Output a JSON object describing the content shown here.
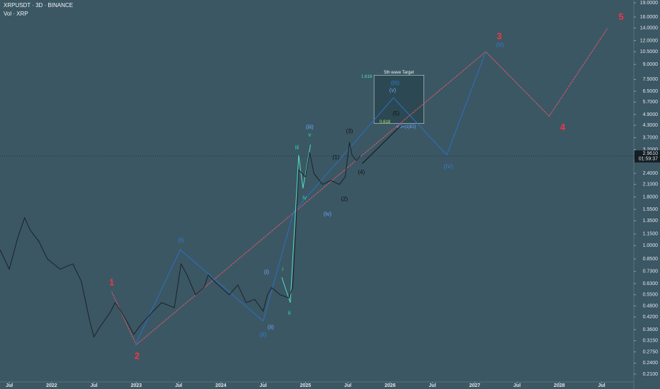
{
  "chart_data": {
    "type": "line",
    "log_scale": true,
    "title": "XRPUSDT · 3D · BINANCE",
    "subtitle": "Vol · XRP",
    "xlim": [
      2021.39,
      2028.88
    ],
    "ylim": [
      0.191,
      19.67
    ],
    "xticks": [
      {
        "value": 2021.5,
        "label": "Jul"
      },
      2022,
      {
        "value": 2022.5,
        "label": "Jul"
      },
      2023,
      {
        "value": 2023.5,
        "label": "Jul"
      },
      2024,
      {
        "value": 2024.5,
        "label": "Jul"
      },
      2025,
      {
        "value": 2025.5,
        "label": "Jul"
      },
      2026,
      {
        "value": 2026.5,
        "label": "Jul"
      },
      2027,
      {
        "value": 2027.5,
        "label": "Jul"
      },
      2028,
      {
        "value": 2028.5,
        "label": "Jul"
      }
    ],
    "yticks": [
      {
        "value": 19,
        "label": "19.0000"
      },
      {
        "value": 16,
        "label": "16.0000"
      },
      {
        "value": 14,
        "label": "14.0000"
      },
      {
        "value": 12,
        "label": "12.0000"
      },
      {
        "value": 10.5,
        "label": "10.5000"
      },
      {
        "value": 9,
        "label": "9.0000"
      },
      {
        "value": 7.5,
        "label": "7.5000"
      },
      {
        "value": 6.5,
        "label": "6.5000"
      },
      {
        "value": 5.7,
        "label": "5.7000"
      },
      {
        "value": 4.9,
        "label": "4.9000"
      },
      {
        "value": 4.3,
        "label": "4.3000"
      },
      {
        "value": 3.7,
        "label": "3.7000"
      },
      {
        "value": 3.2,
        "label": "3.2000"
      },
      {
        "value": 2.8,
        "label": "2.8000"
      },
      {
        "value": 2.4,
        "label": "2.4000"
      },
      {
        "value": 2.1,
        "label": "2.1000"
      },
      {
        "value": 1.8,
        "label": "1.8000"
      },
      {
        "value": 1.55,
        "label": "1.5500"
      },
      {
        "value": 1.35,
        "label": "1.3500"
      },
      {
        "value": 1.15,
        "label": "1.1500"
      },
      {
        "value": 1,
        "label": "1.0000"
      },
      {
        "value": 0.85,
        "label": "0.8500"
      },
      {
        "value": 0.73,
        "label": "0.7300"
      },
      {
        "value": 0.63,
        "label": "0.6300"
      },
      {
        "value": 0.55,
        "label": "0.5500"
      },
      {
        "value": 0.48,
        "label": "0.4800"
      },
      {
        "value": 0.42,
        "label": "0.4200"
      },
      {
        "value": 0.36,
        "label": "0.3600"
      },
      {
        "value": 0.315,
        "label": "0.3150"
      },
      {
        "value": 0.275,
        "label": "0.2750"
      },
      {
        "value": 0.24,
        "label": "0.2400"
      },
      {
        "value": 0.21,
        "label": "0.2100"
      }
    ],
    "last_price": {
      "value": 2.961,
      "label": "2.9610"
    },
    "countdown": "01:59:37",
    "price": {
      "color": "#1c2226",
      "x": [
        2021.39,
        2021.5,
        2021.6,
        2021.68,
        2021.75,
        2021.85,
        2021.95,
        2022.1,
        2022.25,
        2022.35,
        2022.45,
        2022.5,
        2022.55,
        2022.7,
        2022.75,
        2022.82,
        2022.9,
        2022.97,
        2023.05,
        2023.2,
        2023.3,
        2023.45,
        2023.53,
        2023.6,
        2023.7,
        2023.8,
        2023.85,
        2023.95,
        2024.1,
        2024.2,
        2024.3,
        2024.4,
        2024.5,
        2024.55,
        2024.6,
        2024.7,
        2024.8,
        2024.85,
        2024.88,
        2024.92,
        2025.0,
        2025.05,
        2025.1,
        2025.2,
        2025.3,
        2025.4,
        2025.47,
        2025.52,
        2025.55,
        2025.6,
        2025.65
      ],
      "values": [
        0.95,
        0.75,
        1.1,
        1.4,
        1.2,
        1.05,
        0.85,
        0.75,
        0.8,
        0.65,
        0.4,
        0.33,
        0.36,
        0.45,
        0.5,
        0.45,
        0.39,
        0.34,
        0.38,
        0.45,
        0.5,
        0.47,
        0.8,
        0.7,
        0.55,
        0.6,
        0.7,
        0.63,
        0.55,
        0.62,
        0.5,
        0.52,
        0.45,
        0.55,
        0.6,
        0.55,
        0.53,
        0.6,
        1.1,
        2.5,
        2.3,
        3.1,
        2.4,
        2.1,
        2.2,
        2.1,
        2.3,
        3.5,
        3.0,
        2.8,
        2.96
      ]
    },
    "waves": [
      {
        "color": "#d9596b",
        "x": [
          2022.71,
          2023.0,
          2027.13,
          2027.88,
          2028.57
        ],
        "values": [
          0.57,
          0.3,
          10.5,
          4.8,
          14
        ]
      },
      {
        "color": "#2f6fc2",
        "x": [
          2022.99,
          2023.52,
          2024.5,
          2024.86,
          2026.04,
          2026.67,
          2027.13
        ],
        "values": [
          0.3,
          0.95,
          0.4,
          1.5,
          6.0,
          3.0,
          10.5
        ]
      },
      {
        "color": "#4fe0c0",
        "x": [
          2024.72,
          2024.82,
          2024.92,
          2024.97,
          2025.06
        ],
        "values": [
          0.68,
          0.5,
          3.0,
          2.0,
          3.4
        ]
      },
      {
        "color": "#111111",
        "x": [
          2025.67,
          2026.13
        ],
        "values": [
          2.7,
          4.3
        ]
      }
    ],
    "target_box": {
      "x": [
        2025.81,
        2026.4
      ],
      "y": [
        4.4,
        7.9
      ],
      "label": "5th wave Target",
      "top_label": "1.618",
      "bottom_label": "0.618",
      "note": "w5=(1)EQ"
    },
    "annotations": [
      {
        "text": "1",
        "x": 2022.71,
        "y": 0.636,
        "color": "#f23645"
      },
      {
        "text": "2",
        "x": 2023.01,
        "y": 0.26,
        "color": "#f23645"
      },
      {
        "text": "3",
        "x": 2027.29,
        "y": 12.6,
        "color": "#f23645"
      },
      {
        "text": "4",
        "x": 2028.04,
        "y": 4.17,
        "color": "#f23645"
      },
      {
        "text": "5",
        "x": 2028.73,
        "y": 15.9,
        "color": "#f23645"
      },
      {
        "text": "(I)",
        "x": 2023.53,
        "y": 1.063,
        "color": "#2f7fd6"
      },
      {
        "text": "(II)",
        "x": 2024.5,
        "y": 0.337,
        "color": "#2f7fd6"
      },
      {
        "text": "(III)",
        "x": 2026.06,
        "y": 7.15,
        "color": "#2f7fd6"
      },
      {
        "text": "(IV)",
        "x": 2026.69,
        "y": 2.6,
        "color": "#2f7fd6"
      },
      {
        "text": "(V)",
        "x": 2027.3,
        "y": 11.36,
        "color": "#2f7fd6"
      },
      {
        "text": "(i)",
        "x": 2024.54,
        "y": 0.723,
        "color": "#6aa8ff"
      },
      {
        "text": "(ii)",
        "x": 2024.59,
        "y": 0.37,
        "color": "#6aa8ff"
      },
      {
        "text": "(iii)",
        "x": 2025.05,
        "y": 4.2,
        "color": "#6aa8ff"
      },
      {
        "text": "(iv)",
        "x": 2025.26,
        "y": 1.46,
        "color": "#6aa8ff"
      },
      {
        "text": "(v)",
        "x": 2026.03,
        "y": 6.56,
        "color": "#6aa8ff"
      },
      {
        "text": "i",
        "x": 2024.73,
        "y": 0.748,
        "color": "#22e0a0"
      },
      {
        "text": "ii",
        "x": 2024.81,
        "y": 0.44,
        "color": "#22e0a0"
      },
      {
        "text": "iii",
        "x": 2024.9,
        "y": 3.27,
        "color": "#22e0a0"
      },
      {
        "text": "iv",
        "x": 2024.99,
        "y": 1.78,
        "color": "#22e0a0"
      },
      {
        "text": "v",
        "x": 2025.05,
        "y": 3.82,
        "color": "#22e0a0"
      },
      {
        "text": "(1)",
        "x": 2025.36,
        "y": 2.9,
        "color": "#111111"
      },
      {
        "text": "(2)",
        "x": 2025.46,
        "y": 1.75,
        "color": "#111111"
      },
      {
        "text": "(3)",
        "x": 2025.52,
        "y": 3.99,
        "color": "#111111"
      },
      {
        "text": "(4)",
        "x": 2025.66,
        "y": 2.42,
        "color": "#111111"
      },
      {
        "text": "(5)",
        "x": 2026.07,
        "y": 4.94,
        "color": "#111111"
      }
    ]
  }
}
